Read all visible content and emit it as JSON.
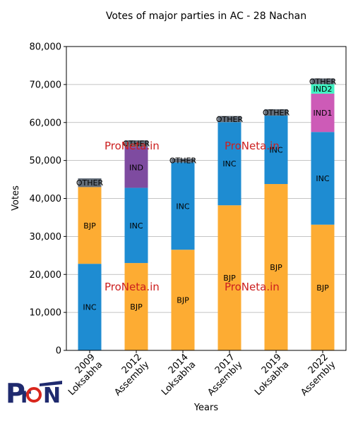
{
  "chart_data": {
    "type": "bar",
    "stacked": true,
    "title": "Votes of major parties in AC - 28 Nachan",
    "xlabel": "Years",
    "ylabel": "Votes",
    "ylim": [
      0,
      80000
    ],
    "yticks": [
      0,
      10000,
      20000,
      30000,
      40000,
      50000,
      60000,
      70000,
      80000
    ],
    "grid": "horizontal",
    "categories": [
      "2009\nLoksabha",
      "2012\nAssembly",
      "2014\nLoksabha",
      "2017\nAssembly",
      "2019\nLoksabha",
      "2022\nAssembly"
    ],
    "colors": {
      "BJP": "#fdac33",
      "INC": "#1e8cd2",
      "IND": "#7e4ba0",
      "IND1": "#cd5bb7",
      "IND2": "#3ff3c3",
      "OTHER": "#646e7a"
    },
    "stacks": [
      [
        {
          "party": "INC",
          "value": 22800
        },
        {
          "party": "BJP",
          "value": 20200
        },
        {
          "party": "OTHER",
          "value": 2300
        }
      ],
      [
        {
          "party": "BJP",
          "value": 23000
        },
        {
          "party": "INC",
          "value": 19800
        },
        {
          "party": "IND",
          "value": 10800
        },
        {
          "party": "OTHER",
          "value": 1700
        }
      ],
      [
        {
          "party": "BJP",
          "value": 26500
        },
        {
          "party": "INC",
          "value": 23000
        },
        {
          "party": "OTHER",
          "value": 1000
        }
      ],
      [
        {
          "party": "BJP",
          "value": 38200
        },
        {
          "party": "INC",
          "value": 21900
        },
        {
          "party": "OTHER",
          "value": 1600
        }
      ],
      [
        {
          "party": "BJP",
          "value": 43800
        },
        {
          "party": "INC",
          "value": 18000
        },
        {
          "party": "OTHER",
          "value": 1700
        }
      ],
      [
        {
          "party": "BJP",
          "value": 33100
        },
        {
          "party": "INC",
          "value": 24400
        },
        {
          "party": "IND1",
          "value": 10100
        },
        {
          "party": "IND2",
          "value": 2500
        },
        {
          "party": "OTHER",
          "value": 1500
        }
      ]
    ]
  },
  "watermark": "ProNeta.in",
  "logo_text": "ProNeta"
}
